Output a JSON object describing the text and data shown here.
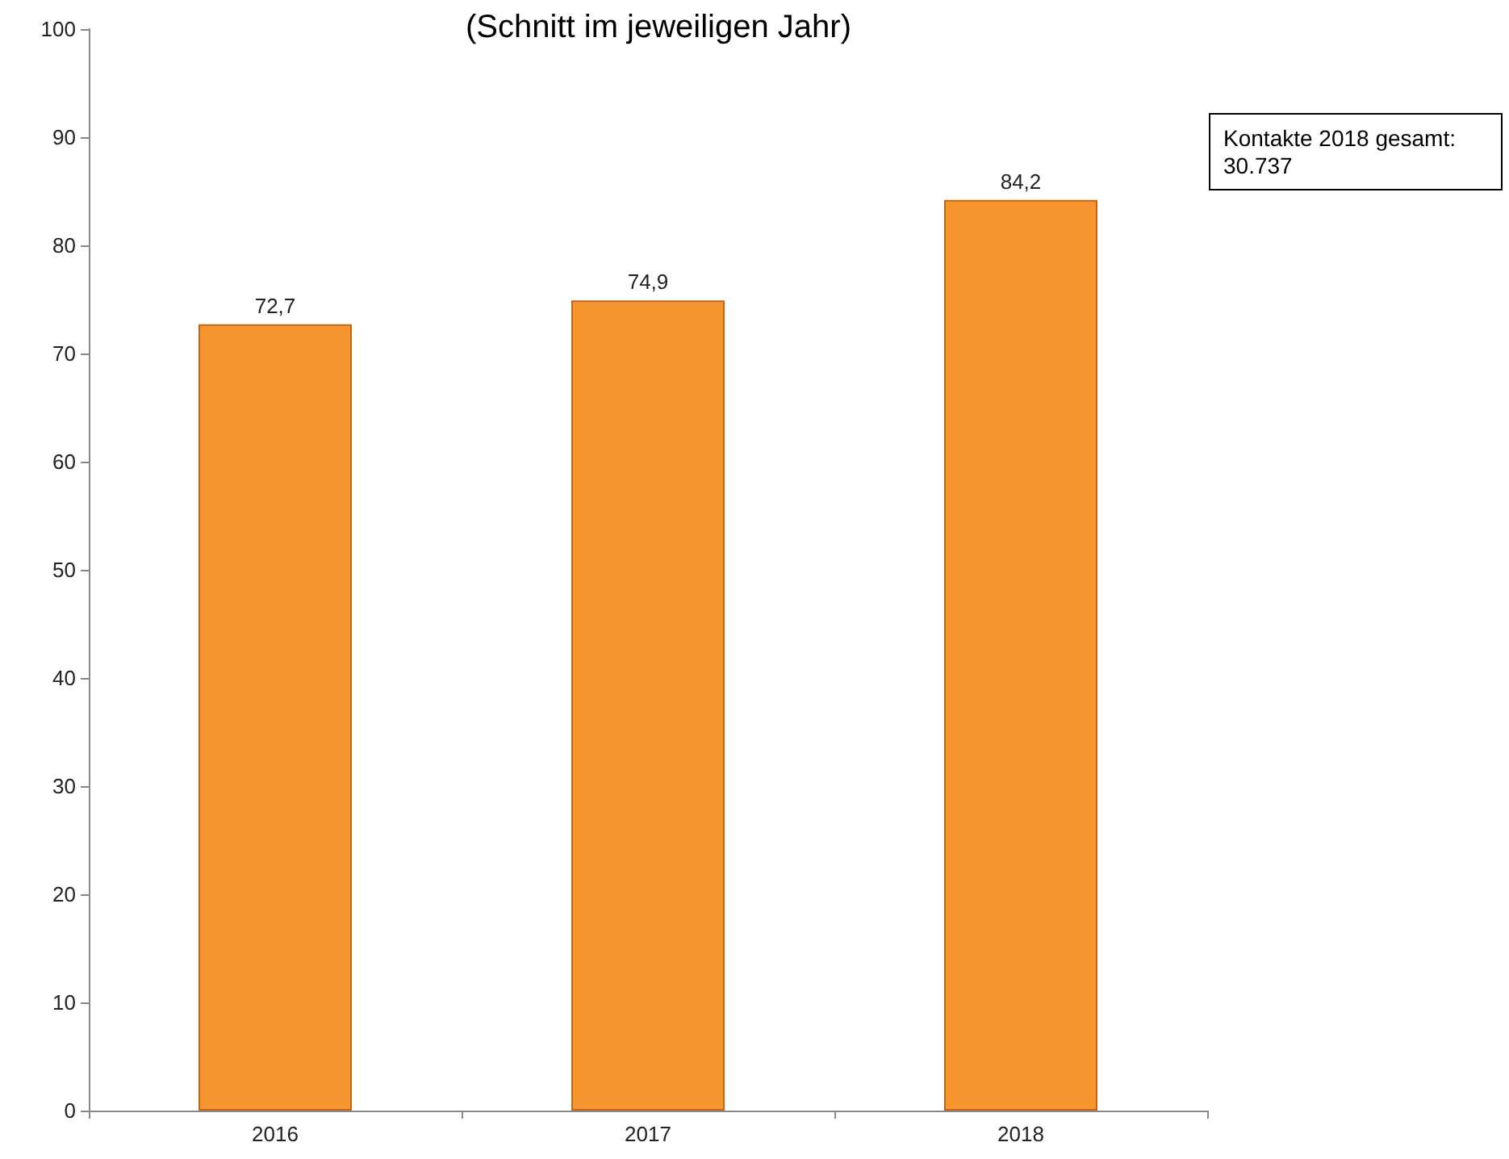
{
  "chart_data": {
    "type": "bar",
    "title": "(Schnitt im jeweiligen Jahr)",
    "categories": [
      "2016",
      "2017",
      "2018"
    ],
    "values": [
      72.7,
      74.9,
      84.2
    ],
    "value_labels": [
      "72,7",
      "74,9",
      "84,2"
    ],
    "color": "#f7962e",
    "ylim": [
      0,
      100
    ],
    "yticks": [
      0,
      10,
      20,
      30,
      40,
      50,
      60,
      70,
      80,
      90,
      100
    ],
    "grid": false,
    "annotations": [
      "Kontakte 2018 gesamt:\n30.737"
    ]
  }
}
